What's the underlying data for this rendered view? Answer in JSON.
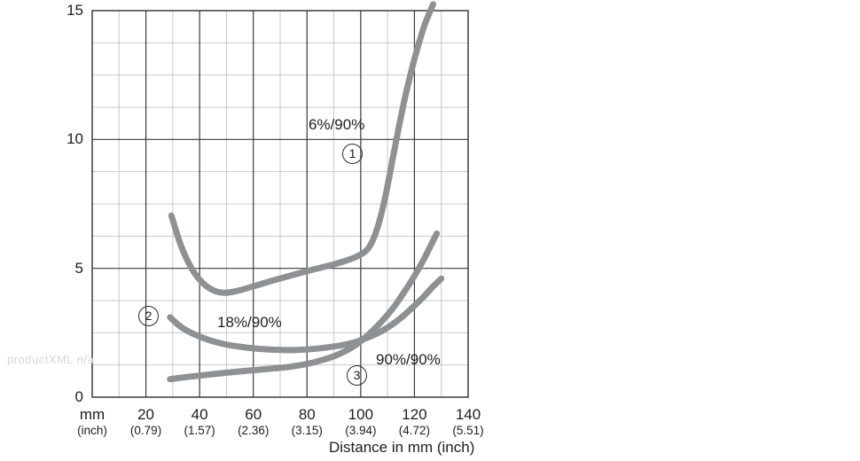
{
  "watermark": "productXML n/a",
  "chart_data": {
    "type": "line",
    "title": "",
    "xlabel": "Distance in mm (inch)",
    "ylabel": "",
    "xlim": [
      0,
      140
    ],
    "ylim": [
      0,
      15
    ],
    "grid": {
      "on": true,
      "x_minor_step_mm": 10,
      "x_major_step_mm": 20,
      "y_minor_step": 1.25,
      "y_major_step": 5
    },
    "x_ticks": [
      {
        "mm": 0,
        "label": "mm",
        "inch": "(inch)"
      },
      {
        "mm": 20,
        "label": "20",
        "inch": "(0.79)"
      },
      {
        "mm": 40,
        "label": "40",
        "inch": "(1.57)"
      },
      {
        "mm": 60,
        "label": "60",
        "inch": "(2.36)"
      },
      {
        "mm": 80,
        "label": "80",
        "inch": "(3.15)"
      },
      {
        "mm": 100,
        "label": "100",
        "inch": "(3.94)"
      },
      {
        "mm": 120,
        "label": "120",
        "inch": "(4.72)"
      },
      {
        "mm": 140,
        "label": "140",
        "inch": "(5.51)"
      }
    ],
    "y_ticks": [
      {
        "value": 0,
        "label": "0"
      },
      {
        "value": 5,
        "label": "5"
      },
      {
        "value": 10,
        "label": "10"
      },
      {
        "value": 15,
        "label": "15"
      }
    ],
    "series": [
      {
        "name": "curve-1",
        "marker": "1",
        "label": "6%/90%",
        "points": [
          [
            29.5,
            7.05
          ],
          [
            33,
            5.9
          ],
          [
            37,
            5.0
          ],
          [
            41,
            4.45
          ],
          [
            45,
            4.15
          ],
          [
            49,
            4.05
          ],
          [
            54,
            4.12
          ],
          [
            60,
            4.3
          ],
          [
            67,
            4.52
          ],
          [
            74,
            4.72
          ],
          [
            81,
            4.92
          ],
          [
            88,
            5.1
          ],
          [
            94,
            5.28
          ],
          [
            99,
            5.48
          ],
          [
            103,
            5.8
          ],
          [
            106,
            6.5
          ],
          [
            109,
            7.7
          ],
          [
            112,
            9.3
          ],
          [
            115,
            10.9
          ],
          [
            118,
            12.3
          ],
          [
            121,
            13.5
          ],
          [
            124,
            14.5
          ],
          [
            127,
            15.25
          ]
        ]
      },
      {
        "name": "curve-2",
        "marker": "2",
        "label": "18%/90%",
        "points": [
          [
            29,
            3.1
          ],
          [
            33,
            2.73
          ],
          [
            38,
            2.44
          ],
          [
            44,
            2.2
          ],
          [
            50,
            2.04
          ],
          [
            57,
            1.93
          ],
          [
            64,
            1.86
          ],
          [
            71,
            1.83
          ],
          [
            78,
            1.84
          ],
          [
            85,
            1.9
          ],
          [
            92,
            2.0
          ],
          [
            98,
            2.14
          ],
          [
            104,
            2.37
          ],
          [
            110,
            2.7
          ],
          [
            115,
            3.08
          ],
          [
            119,
            3.45
          ],
          [
            123,
            3.85
          ],
          [
            127,
            4.3
          ],
          [
            130,
            4.6
          ]
        ]
      },
      {
        "name": "curve-3",
        "marker": "3",
        "label": "90%/90%",
        "points": [
          [
            29,
            0.7
          ],
          [
            35,
            0.78
          ],
          [
            42,
            0.86
          ],
          [
            50,
            0.95
          ],
          [
            58,
            1.03
          ],
          [
            66,
            1.1
          ],
          [
            73,
            1.17
          ],
          [
            79,
            1.27
          ],
          [
            85,
            1.42
          ],
          [
            91,
            1.63
          ],
          [
            97,
            1.95
          ],
          [
            102,
            2.35
          ],
          [
            107,
            2.85
          ],
          [
            112,
            3.45
          ],
          [
            116,
            4.05
          ],
          [
            120,
            4.7
          ],
          [
            124,
            5.45
          ],
          [
            128.3,
            6.35
          ]
        ]
      }
    ],
    "colors": {
      "curve": "#8e9194",
      "grid_minor": "#c9c9c9",
      "grid_major": "#3a3a3a",
      "border": "#2e2e2e",
      "text": "#1d1d1b",
      "watermark": "#d4d7da"
    },
    "curve_stroke_width": 7,
    "legend_position": "none"
  }
}
